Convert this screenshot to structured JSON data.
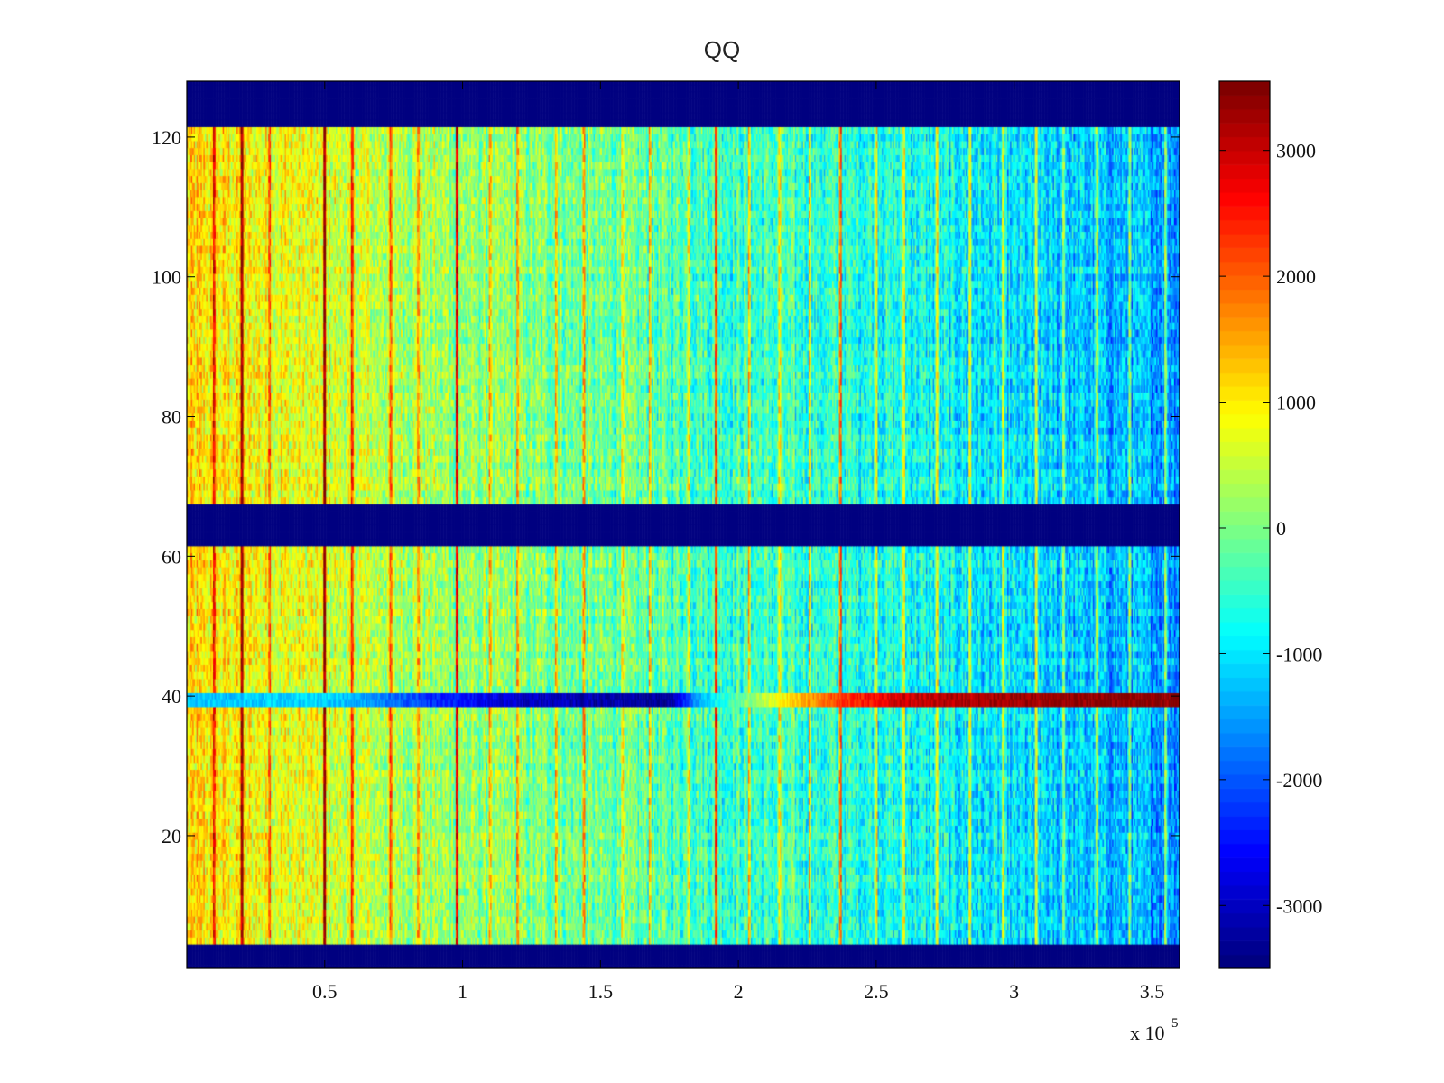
{
  "chart_data": {
    "type": "heatmap",
    "title": "QQ",
    "xlabel": "",
    "ylabel": "",
    "x_scale_label": "x 10",
    "x_scale_exponent": "5",
    "xlim": [
      0,
      3.6
    ],
    "ylim": [
      1,
      128
    ],
    "x_ticks": [
      {
        "value": 0.5,
        "label": "0.5"
      },
      {
        "value": 1,
        "label": "1"
      },
      {
        "value": 1.5,
        "label": "1.5"
      },
      {
        "value": 2,
        "label": "2"
      },
      {
        "value": 2.5,
        "label": "2.5"
      },
      {
        "value": 3,
        "label": "3"
      },
      {
        "value": 3.5,
        "label": "3.5"
      }
    ],
    "y_ticks": [
      {
        "value": 20,
        "label": "20"
      },
      {
        "value": 40,
        "label": "40"
      },
      {
        "value": 60,
        "label": "60"
      },
      {
        "value": 80,
        "label": "80"
      },
      {
        "value": 100,
        "label": "100"
      },
      {
        "value": 120,
        "label": "120"
      }
    ],
    "colorbar": {
      "colormap": "jet",
      "clim": [
        -3500,
        3550
      ],
      "ticks": [
        {
          "value": 3000,
          "label": "3000"
        },
        {
          "value": 2000,
          "label": "2000"
        },
        {
          "value": 1000,
          "label": "1000"
        },
        {
          "value": 0,
          "label": "0"
        },
        {
          "value": -1000,
          "label": "-1000"
        },
        {
          "value": -2000,
          "label": "-2000"
        },
        {
          "value": -3000,
          "label": "-3000"
        }
      ]
    },
    "masked_row_bands": [
      {
        "y_range": [
          1,
          4
        ],
        "value": -3500
      },
      {
        "y_range": [
          61.5,
          67.5
        ],
        "value": -3500
      },
      {
        "y_range": [
          121.5,
          128
        ],
        "value": -3500
      }
    ],
    "trend": {
      "description": "values decrease from left (~+1000) to right (~-1500)",
      "x": [
        0,
        0.5,
        1.0,
        1.5,
        2.0,
        2.5,
        3.0,
        3.6
      ],
      "level": [
        1100,
        650,
        150,
        -150,
        -450,
        -650,
        -1100,
        -1500
      ]
    },
    "vertical_streaks_x": [
      0.1,
      0.2,
      0.3,
      0.5,
      0.6,
      0.74,
      0.84,
      0.98,
      1.1,
      1.2,
      1.34,
      1.44,
      1.58,
      1.68,
      1.82,
      1.92,
      2.04,
      2.15,
      2.26,
      2.37,
      2.5,
      2.6,
      2.72,
      2.84,
      2.96,
      3.08,
      3.18,
      3.3,
      3.42,
      3.55
    ],
    "strong_streaks_x": [
      0.2,
      0.5,
      0.98,
      1.92,
      2.37
    ],
    "anomalous_row": {
      "y": 39,
      "x": [
        0.03,
        0.2,
        0.5,
        0.9,
        1.2,
        1.5,
        1.75,
        1.85,
        2.0,
        2.2,
        2.35,
        2.6,
        2.9,
        3.2,
        3.6
      ],
      "values": [
        -1300,
        -1200,
        -1100,
        -2300,
        -3000,
        -3200,
        -3300,
        -1500,
        -200,
        1200,
        2200,
        3000,
        3300,
        3450,
        3500
      ]
    }
  }
}
